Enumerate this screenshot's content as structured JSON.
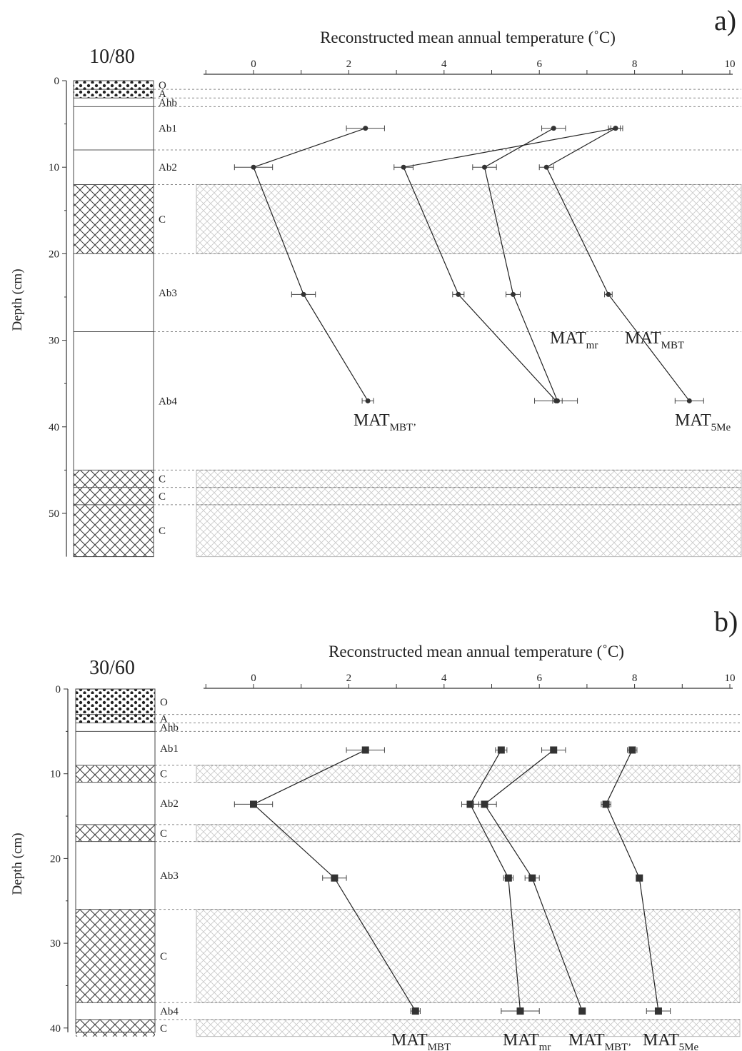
{
  "chart_data": [
    {
      "panel_label": "a)",
      "type": "line",
      "profile": "10/80",
      "xlabel": "Reconstructed mean annual temperature (˚C)",
      "ylabel": "Depth (cm)",
      "xlim": [
        -1,
        10
      ],
      "ylim": [
        0,
        55
      ],
      "x_ticks": [
        0,
        2,
        4,
        6,
        8,
        10
      ],
      "y_ticks": [
        0,
        10,
        20,
        30,
        40,
        50
      ],
      "orientation": "depth axis vertical, temperature axis at top",
      "horizons": [
        {
          "label": "O",
          "top": 0,
          "bottom": 1,
          "pattern": "dots"
        },
        {
          "label": "A",
          "top": 1,
          "bottom": 2,
          "pattern": "dots"
        },
        {
          "label": "Ahb",
          "top": 2,
          "bottom": 3,
          "pattern": "none"
        },
        {
          "label": "Ab1",
          "top": 3,
          "bottom": 8,
          "pattern": "none"
        },
        {
          "label": "Ab2",
          "top": 8,
          "bottom": 12,
          "pattern": "none"
        },
        {
          "label": "C",
          "top": 12,
          "bottom": 20,
          "pattern": "crosshatch"
        },
        {
          "label": "Ab3",
          "top": 20,
          "bottom": 29,
          "pattern": "none"
        },
        {
          "label": "Ab4",
          "top": 29,
          "bottom": 45,
          "pattern": "none"
        },
        {
          "label": "C",
          "top": 45,
          "bottom": 47,
          "pattern": "crosshatch"
        },
        {
          "label": "C",
          "top": 47,
          "bottom": 49,
          "pattern": "crosshatch"
        },
        {
          "label": "C",
          "top": 49,
          "bottom": 55,
          "pattern": "crosshatch"
        }
      ],
      "series": [
        {
          "name": "MAT",
          "sub": "MBT",
          "marker": "circle",
          "x": [
            2.35,
            0.0,
            1.05,
            2.4
          ],
          "y": [
            5.5,
            10,
            24.7,
            37
          ],
          "xerr": [
            0.4,
            0.4,
            0.25,
            0.12
          ]
        },
        {
          "name": "MAT",
          "sub": "mr",
          "marker": "circle",
          "x": [
            7.6,
            3.15,
            4.3,
            6.35
          ],
          "y": [
            5.5,
            10,
            24.7,
            37
          ],
          "xerr": [
            0.15,
            0.2,
            0.12,
            0.45
          ]
        },
        {
          "name": "MAT",
          "sub": "MBT’",
          "marker": "circle",
          "x": [
            6.3,
            4.85,
            5.45,
            6.38
          ],
          "y": [
            5.5,
            10,
            24.7,
            37
          ],
          "xerr": [
            0.25,
            0.25,
            0.15,
            0.1
          ]
        },
        {
          "name": "MAT",
          "sub": "5Me",
          "marker": "circle",
          "x": [
            7.6,
            6.15,
            7.45,
            9.15
          ],
          "y": [
            5.5,
            10,
            24.7,
            37
          ],
          "xerr": [
            0.1,
            0.15,
            0.08,
            0.3
          ]
        }
      ]
    },
    {
      "panel_label": "b)",
      "type": "line",
      "profile": "30/60",
      "xlabel": "Reconstructed mean annual temperature (˚C)",
      "ylabel": "Depth (cm)",
      "xlim": [
        -1,
        10
      ],
      "ylim": [
        0,
        40.5
      ],
      "x_ticks": [
        0,
        2,
        4,
        6,
        8,
        10
      ],
      "y_ticks": [
        0,
        10,
        20,
        30,
        40
      ],
      "orientation": "depth axis vertical, temperature axis at top",
      "horizons": [
        {
          "label": "O",
          "top": 0,
          "bottom": 3,
          "pattern": "dots"
        },
        {
          "label": "A",
          "top": 3,
          "bottom": 4,
          "pattern": "dots"
        },
        {
          "label": "Ahb",
          "top": 4,
          "bottom": 5,
          "pattern": "none"
        },
        {
          "label": "Ab1",
          "top": 5,
          "bottom": 9,
          "pattern": "none"
        },
        {
          "label": "C",
          "top": 9,
          "bottom": 11,
          "pattern": "crosshatch"
        },
        {
          "label": "Ab2",
          "top": 11,
          "bottom": 16,
          "pattern": "none"
        },
        {
          "label": "C",
          "top": 16,
          "bottom": 18,
          "pattern": "crosshatch"
        },
        {
          "label": "Ab3",
          "top": 18,
          "bottom": 26,
          "pattern": "none"
        },
        {
          "label": "C",
          "top": 26,
          "bottom": 37,
          "pattern": "crosshatch"
        },
        {
          "label": "Ab4",
          "top": 37,
          "bottom": 39,
          "pattern": "none"
        },
        {
          "label": "C",
          "top": 39,
          "bottom": 41,
          "pattern": "crosshatch"
        }
      ],
      "series": [
        {
          "name": "MAT",
          "sub": "MBT",
          "marker": "square",
          "x": [
            2.35,
            0.0,
            1.7,
            3.4
          ],
          "y": [
            7.2,
            13.6,
            22.3,
            38
          ],
          "xerr": [
            0.4,
            0.4,
            0.25,
            0.1
          ]
        },
        {
          "name": "MAT",
          "sub": "mr",
          "marker": "square",
          "x": [
            5.2,
            4.55,
            5.35,
            5.6
          ],
          "y": [
            7.2,
            13.6,
            22.3,
            38
          ],
          "xerr": [
            0.12,
            0.18,
            0.1,
            0.4
          ]
        },
        {
          "name": "MAT",
          "sub": "MBT’",
          "marker": "square",
          "x": [
            6.3,
            4.85,
            5.85,
            6.9
          ],
          "y": [
            7.2,
            13.6,
            22.3,
            38
          ],
          "xerr": [
            0.25,
            0.25,
            0.15,
            0.05
          ]
        },
        {
          "name": "MAT",
          "sub": "5Me",
          "marker": "square",
          "x": [
            7.95,
            7.4,
            8.1,
            8.5
          ],
          "y": [
            7.2,
            13.6,
            22.3,
            38
          ],
          "xerr": [
            0.1,
            0.1,
            0.05,
            0.25
          ]
        }
      ]
    }
  ]
}
